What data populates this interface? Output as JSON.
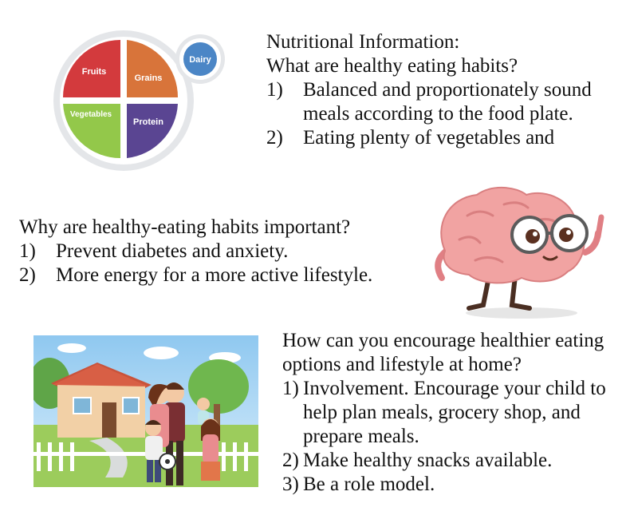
{
  "plate": {
    "labels": {
      "fruits": "Fruits",
      "grains": "Grains",
      "vegetables": "Vegetables",
      "protein": "Protein",
      "dairy": "Dairy"
    },
    "colors": {
      "fruits": "#d33a3d",
      "grains": "#d8743a",
      "vegetables": "#93c84a",
      "protein": "#5a4592",
      "dairy": "#4b86c6"
    }
  },
  "section1": {
    "heading": "Nutritional Information:",
    "question": "What are healthy eating habits?",
    "items": [
      {
        "num": "1)",
        "text": "Balanced and proportionately sound meals according to the food plate."
      },
      {
        "num": "2)",
        "text": "Eating plenty of vegetables and"
      }
    ]
  },
  "section2": {
    "question": "Why are healthy-eating habits important?",
    "items": [
      {
        "num": "1)",
        "text": "Prevent diabetes and anxiety."
      },
      {
        "num": "2)",
        "text": "More energy for a more active lifestyle."
      }
    ]
  },
  "section3": {
    "question": "How can you encourage healthier eating options and lifestyle at home?",
    "items": [
      {
        "num": "1)",
        "text": "Involvement. Encourage your child to help plan meals, grocery shop, and prepare meals."
      },
      {
        "num": "2)",
        "text": "Make healthy snacks available."
      },
      {
        "num": "3)",
        "text": "Be a role model."
      }
    ]
  }
}
